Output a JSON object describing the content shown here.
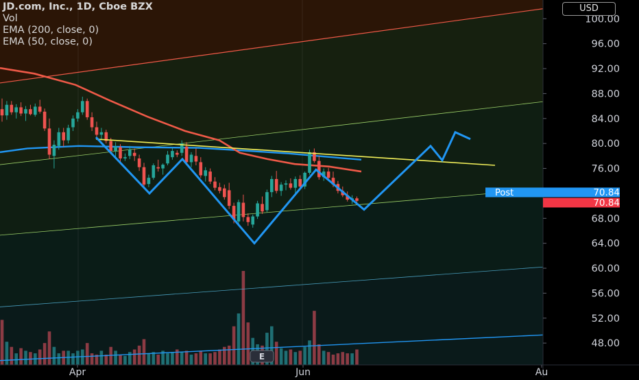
{
  "header": {
    "symbol": "JD.com, Inc., 1D, Cboe BZX",
    "indicators": [
      "Vol",
      "EMA (200, close, 0)",
      "EMA (50, close, 0)"
    ],
    "currency": "USD"
  },
  "colors": {
    "up": "#26a69a",
    "down": "#ef5350",
    "volume_up": "#1f6f74",
    "volume_down": "#8c3b44",
    "ema200": "#2196f3",
    "ema50": "#f05a48",
    "trendline": "#f2ef5a",
    "pattern": "#2196f3",
    "channel_top": "#f05a48",
    "channel_lines": "#9dd26a",
    "axis_text": "#d1d4dc",
    "post_badge": "#2196f3",
    "last_badge": "#f23645"
  },
  "price_axis": {
    "ticks": [
      "100.00",
      "96.00",
      "92.00",
      "88.00",
      "84.00",
      "80.00",
      "76.00",
      "72.00",
      "68.00",
      "64.00",
      "60.00",
      "56.00",
      "52.00",
      "48.00"
    ],
    "post_label": "Post",
    "post_value": "70.84",
    "last_value": "70.84"
  },
  "time_axis": {
    "ticks": [
      "Apr",
      "Jun",
      "Au"
    ]
  },
  "event_marker": "E",
  "chart_data": {
    "type": "candlestick",
    "price_range": [
      44.5,
      103
    ],
    "ohlc": [
      [
        85.5,
        87.2,
        83.5,
        84.5
      ],
      [
        84.5,
        86.8,
        83.8,
        86.2
      ],
      [
        86.2,
        86.8,
        84.6,
        85.0
      ],
      [
        85.0,
        86.3,
        84.0,
        85.8
      ],
      [
        85.8,
        86.6,
        84.4,
        84.8
      ],
      [
        84.8,
        86.0,
        83.6,
        85.5
      ],
      [
        85.5,
        86.2,
        84.5,
        84.7
      ],
      [
        84.6,
        86.4,
        84.3,
        85.9
      ],
      [
        85.9,
        87.0,
        84.8,
        85.1
      ],
      [
        85.1,
        85.6,
        82.0,
        82.4
      ],
      [
        82.4,
        84.0,
        77.5,
        78.2
      ],
      [
        78.0,
        80.5,
        76.0,
        79.8
      ],
      [
        79.6,
        82.5,
        79.0,
        81.8
      ],
      [
        81.8,
        82.5,
        79.5,
        80.5
      ],
      [
        80.5,
        83.0,
        80.0,
        82.5
      ],
      [
        82.6,
        84.5,
        82.0,
        84.0
      ],
      [
        84.0,
        85.5,
        83.5,
        85.0
      ],
      [
        85.0,
        87.5,
        84.6,
        86.8
      ],
      [
        86.8,
        87.2,
        83.8,
        84.2
      ],
      [
        84.2,
        85.0,
        82.0,
        82.6
      ],
      [
        82.6,
        83.5,
        81.0,
        81.4
      ],
      [
        81.4,
        82.5,
        80.5,
        81.8
      ],
      [
        81.8,
        82.2,
        80.0,
        80.4
      ],
      [
        80.4,
        80.9,
        78.3,
        78.8
      ],
      [
        78.8,
        80.2,
        77.5,
        79.5
      ],
      [
        79.4,
        79.9,
        77.0,
        77.6
      ],
      [
        77.6,
        78.4,
        77.2,
        77.8
      ],
      [
        78.0,
        79.6,
        77.5,
        79.0
      ],
      [
        78.5,
        79.2,
        77.2,
        78.0
      ],
      [
        77.6,
        78.2,
        75.6,
        76.2
      ],
      [
        76.2,
        76.9,
        73.0,
        73.4
      ],
      [
        73.5,
        75.0,
        73.0,
        74.5
      ],
      [
        74.5,
        76.8,
        74.2,
        76.5
      ],
      [
        76.2,
        77.4,
        75.5,
        76.0
      ],
      [
        76.0,
        76.8,
        75.0,
        76.6
      ],
      [
        76.8,
        78.8,
        76.5,
        78.2
      ],
      [
        77.8,
        79.3,
        77.4,
        78.8
      ],
      [
        78.5,
        78.9,
        77.8,
        78.2
      ],
      [
        78.5,
        80.5,
        78.0,
        80.0
      ],
      [
        79.5,
        80.2,
        76.5,
        77.0
      ],
      [
        77.0,
        78.6,
        76.2,
        78.2
      ],
      [
        78.0,
        79.2,
        76.5,
        77.1
      ],
      [
        77.0,
        77.8,
        74.5,
        74.9
      ],
      [
        74.8,
        76.2,
        73.9,
        75.7
      ],
      [
        75.5,
        76.0,
        73.5,
        73.9
      ],
      [
        73.9,
        74.6,
        72.5,
        72.9
      ],
      [
        73.0,
        73.7,
        72.0,
        72.4
      ],
      [
        72.8,
        73.4,
        71.0,
        71.4
      ],
      [
        72.5,
        73.7,
        69.5,
        70.0
      ],
      [
        70.0,
        70.5,
        67.2,
        67.8
      ],
      [
        67.5,
        71.0,
        66.8,
        70.6
      ],
      [
        70.5,
        71.8,
        67.5,
        68.2
      ],
      [
        68.2,
        68.8,
        66.8,
        67.4
      ],
      [
        67.0,
        68.6,
        66.5,
        68.3
      ],
      [
        68.3,
        70.8,
        67.9,
        70.4
      ],
      [
        70.3,
        71.5,
        68.7,
        69.1
      ],
      [
        69.3,
        72.6,
        69.0,
        72.2
      ],
      [
        72.2,
        74.8,
        71.4,
        74.3
      ],
      [
        74.3,
        75.6,
        72.0,
        72.4
      ],
      [
        72.4,
        73.8,
        71.6,
        73.4
      ],
      [
        73.4,
        74.1,
        72.5,
        73.6
      ],
      [
        73.6,
        74.4,
        72.6,
        72.9
      ],
      [
        72.9,
        74.7,
        72.0,
        74.3
      ],
      [
        74.3,
        74.9,
        72.8,
        73.1
      ],
      [
        73.1,
        75.5,
        72.7,
        75.3
      ],
      [
        75.3,
        79.0,
        75.0,
        78.6
      ],
      [
        78.6,
        79.2,
        76.9,
        77.2
      ],
      [
        77.2,
        78.0,
        74.2,
        74.6
      ],
      [
        74.6,
        76.0,
        74.0,
        75.5
      ],
      [
        75.5,
        76.1,
        74.2,
        74.5
      ],
      [
        74.5,
        75.5,
        73.0,
        73.4
      ],
      [
        73.5,
        74.0,
        72.0,
        72.4
      ],
      [
        72.4,
        73.1,
        71.4,
        71.7
      ],
      [
        71.7,
        72.3,
        70.7,
        71.0
      ],
      [
        71.0,
        71.7,
        70.3,
        71.2
      ],
      [
        71.2,
        71.5,
        70.2,
        70.8
      ]
    ],
    "volume": [
      35,
      18,
      14,
      9,
      13,
      11,
      10,
      9,
      12,
      17,
      26,
      14,
      9,
      11,
      11,
      9,
      11,
      12,
      17,
      9,
      8,
      11,
      8,
      14,
      11,
      8,
      7,
      10,
      12,
      15,
      20,
      9,
      10,
      8,
      11,
      9,
      10,
      12,
      10,
      11,
      8,
      9,
      11,
      9,
      9,
      10,
      12,
      14,
      15,
      30,
      40,
      73,
      33,
      21,
      16,
      15,
      25,
      30,
      18,
      13,
      11,
      12,
      10,
      11,
      14,
      19,
      42,
      16,
      11,
      10,
      8,
      9,
      10,
      9,
      9,
      12
    ],
    "ema200": [
      [
        0,
        78.6
      ],
      [
        40,
        79.2
      ],
      [
        115,
        79.6
      ],
      [
        200,
        79.4
      ],
      [
        290,
        79.3
      ],
      [
        350,
        78.9
      ],
      [
        420,
        78.4
      ],
      [
        527,
        77.4
      ]
    ],
    "ema50": [
      [
        0,
        92.1
      ],
      [
        50,
        91.2
      ],
      [
        110,
        89.4
      ],
      [
        160,
        86.9
      ],
      [
        215,
        84.3
      ],
      [
        270,
        82.0
      ],
      [
        320,
        80.5
      ],
      [
        350,
        78.5
      ],
      [
        390,
        77.5
      ],
      [
        430,
        76.7
      ],
      [
        480,
        76.3
      ],
      [
        527,
        75.5
      ]
    ],
    "trendline": [
      [
        140,
        80.7
      ],
      [
        722,
        76.5
      ]
    ],
    "pattern": [
      [
        140,
        81.0
      ],
      [
        218,
        72.0
      ],
      [
        266,
        77.5
      ],
      [
        371,
        64.0
      ],
      [
        461,
        75.8
      ],
      [
        531,
        69.4
      ],
      [
        628,
        79.6
      ],
      [
        645,
        77.3
      ],
      [
        664,
        81.8
      ],
      [
        686,
        80.7
      ]
    ],
    "channel_upper": [
      [
        0,
        89.7
      ],
      [
        792,
        101.6
      ]
    ],
    "channel_mid_upper": [
      [
        0,
        76.6
      ],
      [
        792,
        86.7
      ]
    ],
    "channel_mid_lower": [
      [
        0,
        65.3
      ],
      [
        792,
        72.7
      ]
    ],
    "channel_lower": [
      [
        0,
        53.8
      ],
      [
        792,
        60.2
      ]
    ],
    "channel_bottom": [
      [
        0,
        45.2
      ],
      [
        792,
        49.3
      ]
    ]
  }
}
